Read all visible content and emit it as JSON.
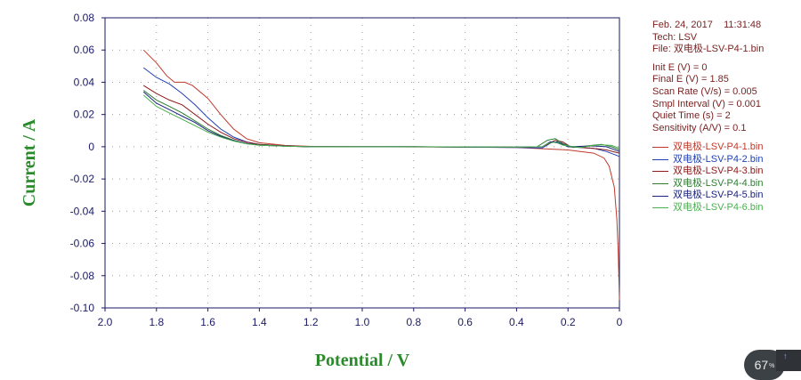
{
  "chart_data": {
    "type": "line",
    "xlabel": "Potential / V",
    "ylabel": "Current / A",
    "xlim": [
      2.0,
      0.0
    ],
    "x_reversed": true,
    "ylim": [
      -0.1,
      0.08
    ],
    "xticks": [
      "2.0",
      "1.8",
      "1.6",
      "1.4",
      "1.2",
      "1.0",
      "0.8",
      "0.6",
      "0.4",
      "0.2",
      "0"
    ],
    "xtick_values": [
      2.0,
      1.8,
      1.6,
      1.4,
      1.2,
      1.0,
      0.8,
      0.6,
      0.4,
      0.2,
      0.0
    ],
    "yticks": [
      "0.08",
      "0.06",
      "0.04",
      "0.02",
      "0",
      "-0.02",
      "-0.04",
      "-0.06",
      "-0.08",
      "-0.10"
    ],
    "ytick_values": [
      0.08,
      0.06,
      0.04,
      0.02,
      0.0,
      -0.02,
      -0.04,
      -0.06,
      -0.08,
      -0.1
    ],
    "grid": "dotted",
    "legend_position": "right",
    "series": [
      {
        "name": "双电极-LSV-P4-1.bin",
        "color": "#c0392b",
        "points": [
          [
            1.85,
            0.06
          ],
          [
            1.8,
            0.052
          ],
          [
            1.76,
            0.044
          ],
          [
            1.73,
            0.04
          ],
          [
            1.69,
            0.04
          ],
          [
            1.66,
            0.038
          ],
          [
            1.6,
            0.03
          ],
          [
            1.55,
            0.02
          ],
          [
            1.5,
            0.011
          ],
          [
            1.45,
            0.005
          ],
          [
            1.4,
            0.0025
          ],
          [
            1.3,
            0.0008
          ],
          [
            1.2,
            0.0002
          ],
          [
            1.0,
            0.0
          ],
          [
            0.6,
            -0.0002
          ],
          [
            0.4,
            -0.0005
          ],
          [
            0.2,
            -0.002
          ],
          [
            0.1,
            -0.004
          ],
          [
            0.06,
            -0.007
          ],
          [
            0.04,
            -0.012
          ],
          [
            0.02,
            -0.025
          ],
          [
            0.01,
            -0.045
          ],
          [
            0.005,
            -0.065
          ],
          [
            0.0,
            -0.095
          ]
        ]
      },
      {
        "name": "双电极-LSV-P4-2.bin",
        "color": "#1f3fb5",
        "points": [
          [
            1.85,
            0.049
          ],
          [
            1.8,
            0.043
          ],
          [
            1.75,
            0.039
          ],
          [
            1.7,
            0.033
          ],
          [
            1.65,
            0.026
          ],
          [
            1.6,
            0.018
          ],
          [
            1.55,
            0.011
          ],
          [
            1.5,
            0.006
          ],
          [
            1.45,
            0.003
          ],
          [
            1.4,
            0.0015
          ],
          [
            1.3,
            0.0005
          ],
          [
            1.2,
            0.0
          ],
          [
            0.8,
            0.0
          ],
          [
            0.4,
            -0.0005
          ],
          [
            0.3,
            -0.0008
          ],
          [
            0.26,
            0.003
          ],
          [
            0.23,
            0.002
          ],
          [
            0.2,
            0.0
          ],
          [
            0.1,
            -0.001
          ],
          [
            0.05,
            -0.003
          ],
          [
            0.0,
            -0.006
          ]
        ]
      },
      {
        "name": "双电极-LSV-P4-3.bin",
        "color": "#8b1a1a",
        "points": [
          [
            1.85,
            0.038
          ],
          [
            1.8,
            0.033
          ],
          [
            1.75,
            0.029
          ],
          [
            1.7,
            0.026
          ],
          [
            1.65,
            0.02
          ],
          [
            1.6,
            0.014
          ],
          [
            1.55,
            0.009
          ],
          [
            1.5,
            0.005
          ],
          [
            1.45,
            0.0028
          ],
          [
            1.4,
            0.0015
          ],
          [
            1.3,
            0.0005
          ],
          [
            1.2,
            0.0
          ],
          [
            0.8,
            0.0
          ],
          [
            0.4,
            -0.0003
          ],
          [
            0.3,
            0.0
          ],
          [
            0.25,
            0.004
          ],
          [
            0.22,
            0.003
          ],
          [
            0.19,
            0.0
          ],
          [
            0.1,
            -0.001
          ],
          [
            0.05,
            -0.002
          ],
          [
            0.0,
            -0.004
          ]
        ]
      },
      {
        "name": "双电极-LSV-P4-4.bin",
        "color": "#2e7d32",
        "points": [
          [
            1.85,
            0.035
          ],
          [
            1.8,
            0.029
          ],
          [
            1.75,
            0.025
          ],
          [
            1.7,
            0.021
          ],
          [
            1.65,
            0.016
          ],
          [
            1.6,
            0.011
          ],
          [
            1.55,
            0.007
          ],
          [
            1.5,
            0.004
          ],
          [
            1.45,
            0.002
          ],
          [
            1.4,
            0.0012
          ],
          [
            1.3,
            0.0004
          ],
          [
            1.2,
            0.0
          ],
          [
            0.8,
            0.0
          ],
          [
            0.4,
            -0.0003
          ],
          [
            0.32,
            0.0
          ],
          [
            0.28,
            0.004
          ],
          [
            0.25,
            0.005
          ],
          [
            0.22,
            0.002
          ],
          [
            0.18,
            -0.0005
          ],
          [
            0.1,
            0.001
          ],
          [
            0.07,
            0.0015
          ],
          [
            0.03,
            0.0
          ],
          [
            0.0,
            -0.002
          ]
        ]
      },
      {
        "name": "双电极-LSV-P4-5.bin",
        "color": "#1a237e",
        "points": [
          [
            1.85,
            0.034
          ],
          [
            1.8,
            0.027
          ],
          [
            1.75,
            0.023
          ],
          [
            1.7,
            0.019
          ],
          [
            1.65,
            0.015
          ],
          [
            1.6,
            0.01
          ],
          [
            1.55,
            0.0065
          ],
          [
            1.5,
            0.0038
          ],
          [
            1.45,
            0.002
          ],
          [
            1.4,
            0.001
          ],
          [
            1.3,
            0.0003
          ],
          [
            1.2,
            0.0
          ],
          [
            0.8,
            0.0
          ],
          [
            0.4,
            -0.0003
          ],
          [
            0.3,
            0.0
          ],
          [
            0.27,
            0.003
          ],
          [
            0.24,
            0.003
          ],
          [
            0.2,
            0.0
          ],
          [
            0.1,
            0.0005
          ],
          [
            0.05,
            0.0
          ],
          [
            0.0,
            -0.003
          ]
        ]
      },
      {
        "name": "双电极-LSV-P4-6.bin",
        "color": "#4caf50",
        "points": [
          [
            1.85,
            0.032
          ],
          [
            1.8,
            0.025
          ],
          [
            1.75,
            0.021
          ],
          [
            1.7,
            0.017
          ],
          [
            1.65,
            0.013
          ],
          [
            1.6,
            0.009
          ],
          [
            1.55,
            0.006
          ],
          [
            1.5,
            0.0035
          ],
          [
            1.45,
            0.0018
          ],
          [
            1.4,
            0.0009
          ],
          [
            1.3,
            0.0003
          ],
          [
            1.2,
            0.0
          ],
          [
            0.8,
            0.0
          ],
          [
            0.4,
            -0.0002
          ],
          [
            0.3,
            0.0
          ],
          [
            0.28,
            0.002
          ],
          [
            0.25,
            0.003
          ],
          [
            0.22,
            0.001
          ],
          [
            0.15,
            -0.0005
          ],
          [
            0.1,
            0.0008
          ],
          [
            0.07,
            0.0012
          ],
          [
            0.03,
            0.0008
          ],
          [
            0.0,
            -0.001
          ]
        ]
      }
    ]
  },
  "info": {
    "date": "Feb. 24, 2017",
    "time": "11:31:48",
    "tech": "Tech: LSV",
    "file": "File: 双电极-LSV-P4-1.bin",
    "params": [
      "Init E (V) = 0",
      "Final E (V) = 1.85",
      "Scan Rate (V/s) = 0.005",
      "Smpl Interval (V) = 0.001",
      "Quiet Time (s) = 2",
      "Sensitivity (A/V) = 0.1"
    ]
  },
  "overlay": {
    "zoom_value": "67",
    "zoom_unit": "%"
  }
}
